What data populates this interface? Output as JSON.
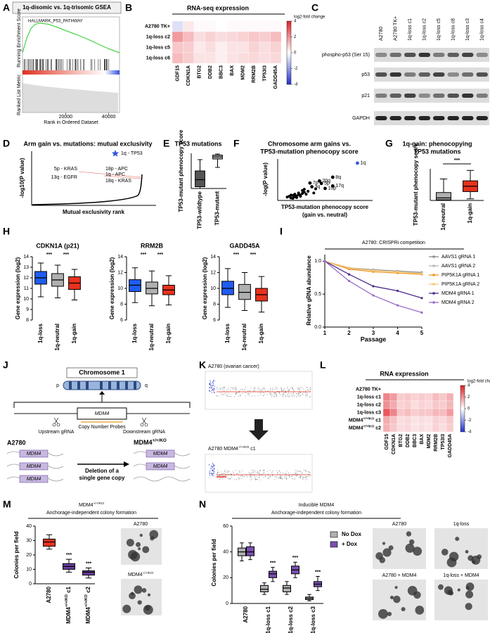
{
  "panels": {
    "A": {
      "letter": "A",
      "title": "1q-disomic vs. 1q-trisomic GSEA",
      "gene_set": "HALLMARK_P53_PATHWAY",
      "y_label": "Running Enrichment Score",
      "y2_label": "Ranked List Metric",
      "x_label": "Rank in Ordered Dataset",
      "xlim": [
        0,
        45000
      ],
      "xticks": [
        20000,
        40000
      ],
      "ylim": [
        -0.1,
        0.7
      ],
      "es": {
        "x": [
          0,
          2000,
          4000,
          6000,
          8000,
          12000,
          16000,
          20000,
          25000,
          30000,
          35000,
          40000,
          45000
        ],
        "values": [
          0,
          0.3,
          0.5,
          0.58,
          0.6,
          0.58,
          0.52,
          0.45,
          0.37,
          0.28,
          0.18,
          0.08,
          0
        ],
        "color": "#22cc22"
      }
    },
    "B": {
      "letter": "B",
      "title": "RNA-seq expression",
      "rows": [
        "A2780 TK+",
        "1q-loss c2",
        "1q-loss c5",
        "1q-loss c6"
      ],
      "columns": [
        "GDF15",
        "CDKN1A",
        "BTG2",
        "DDB2",
        "BBC3",
        "BAX",
        "MDM2",
        "RRM2B",
        "TP53I3",
        "GADD45A"
      ],
      "matrix": [
        [
          -0.6,
          0.4,
          0.1,
          0.1,
          0,
          0.1,
          0.1,
          0.1,
          0.1,
          0.1
        ],
        [
          1.8,
          1.2,
          0.6,
          0.8,
          0.6,
          0.7,
          0.8,
          1.0,
          0.9,
          1.2
        ],
        [
          1.0,
          0.9,
          0.4,
          0.6,
          0.3,
          0.5,
          0.5,
          0.8,
          0.6,
          0.8
        ],
        [
          1.2,
          0.9,
          0.5,
          0.5,
          0.3,
          0.5,
          0.6,
          0.7,
          0.6,
          0.7
        ]
      ],
      "clim": [
        -4,
        4
      ],
      "cticks": [
        4,
        2,
        0,
        -2,
        -4
      ],
      "colorbar_label": "log2-fold change",
      "cmap": [
        "#2233cc",
        "#ffffff",
        "#e0202a"
      ]
    },
    "C": {
      "letter": "C",
      "columns": [
        "A2780",
        "A2780 TK+",
        "1q-loss c1",
        "1q-loss c2",
        "1q-loss c5",
        "1q-loss c8",
        "1q-loss c3",
        "1q-loss c4"
      ],
      "rows": [
        "phospho-p53 (Ser 15)",
        "p53",
        "p21",
        "GAPDH"
      ]
    },
    "D": {
      "letter": "D",
      "title": "Arm gain vs. mutations: mutual exclusivity",
      "y_label": "-log10(P value)",
      "x_label": "Mutual exclusivity rank",
      "annotations": [
        {
          "text": "1q - TP53",
          "color": "#3355dd"
        },
        {
          "text": "5p - KRAS",
          "color": "#e03020"
        },
        {
          "text": "13q - EGFR",
          "color": "#e03020"
        },
        {
          "text": "18p - APC",
          "color": "#e03020"
        },
        {
          "text": "1q - APC",
          "color": "#e03020"
        },
        {
          "text": "18q - KRAS",
          "color": "#e03020"
        }
      ]
    },
    "E": {
      "letter": "E",
      "title": "TP53 mutations",
      "y_label": "TP53-mutant phenocopy score",
      "categories": [
        "TP53-wildtype",
        "TP53-mutant"
      ],
      "ylim": [
        0,
        1
      ],
      "boxes": [
        [
          0,
          0.05,
          0.25,
          0.5,
          0.82
        ],
        [
          0.6,
          0.84,
          0.9,
          0.95,
          0.98
        ]
      ],
      "colors": [
        "#555555",
        "#b0b0b0"
      ]
    },
    "F": {
      "letter": "F",
      "title": [
        "Chromosome arm gains vs.",
        "TP53-mutation phenocopy score"
      ],
      "y_label": "-log(P value)",
      "x_label": [
        "TP53-mutation phenocopy score",
        "(gain vs. neutral)"
      ],
      "xlim": [
        0,
        0.5
      ],
      "ylim": [
        0,
        1
      ],
      "points": {
        "x": [
          0.05,
          0.06,
          0.07,
          0.08,
          0.09,
          0.1,
          0.11,
          0.12,
          0.13,
          0.08,
          0.1,
          0.12,
          0.14,
          0.15,
          0.16,
          0.09,
          0.11,
          0.13,
          0.2,
          0.19,
          0.07,
          0.14
        ],
        "y": [
          0.08,
          0.1,
          0.06,
          0.12,
          0.09,
          0.11,
          0.14,
          0.13,
          0.17,
          0.05,
          0.07,
          0.1,
          0.2,
          0.15,
          0.22,
          0.15,
          0.18,
          0.24,
          0.28,
          0.18,
          0.13,
          0.27
        ]
      },
      "highlights": [
        {
          "label": "1q",
          "x": 0.42,
          "y": 0.9,
          "color": "#3355dd"
        },
        {
          "label": "8q",
          "x": 0.29,
          "y": 0.56,
          "color": "#e03020"
        },
        {
          "label": "20q",
          "x": 0.22,
          "y": 0.47,
          "color": "#e03020"
        },
        {
          "label": "5p",
          "x": 0.23,
          "y": 0.41,
          "color": "#e03020"
        },
        {
          "label": "7p",
          "x": 0.17,
          "y": 0.42,
          "color": "#e03020"
        },
        {
          "label": "3q",
          "x": 0.18,
          "y": 0.33,
          "color": "#e03020"
        },
        {
          "label": "17q",
          "x": 0.29,
          "y": 0.35,
          "color": "#e03020"
        },
        {
          "label": "10p",
          "x": 0.25,
          "y": 0.29,
          "color": "#e03020"
        }
      ]
    },
    "G": {
      "letter": "G",
      "title": [
        "1q-gain: phenocopying",
        "TP53 mutations"
      ],
      "y_label": "TP53-mutant phenocopy score",
      "categories": [
        "1q-neutral",
        "1q-gain"
      ],
      "ylim": [
        0,
        1
      ],
      "boxes": [
        [
          0,
          0.02,
          0.08,
          0.25,
          0.68
        ],
        [
          0.05,
          0.28,
          0.45,
          0.62,
          0.95
        ]
      ],
      "colors": [
        "#b0b0b0",
        "#e8321e"
      ],
      "significance": "***"
    },
    "H": {
      "letter": "H",
      "y_label": "Gene expression (log2)",
      "categories": [
        "1q-loss",
        "1q-neutral",
        "1q-gain"
      ],
      "colors": [
        "#1f5cf0",
        "#b0b0b0",
        "#e8321e"
      ],
      "significance": "***",
      "plots": [
        {
          "title": "CDKN1A (p21)",
          "ylim": [
            8,
            14
          ],
          "yticks": [
            8,
            9,
            10,
            11,
            12,
            13,
            14
          ],
          "boxes": [
            [
              10.2,
              11.4,
              12,
              12.6,
              13.4
            ],
            [
              10.1,
              11.2,
              11.8,
              12.4,
              13.2
            ],
            [
              9.9,
              10.9,
              11.5,
              12.1,
              12.8
            ]
          ]
        },
        {
          "title": "RRM2B",
          "ylim": [
            6,
            14
          ],
          "yticks": [
            6,
            8,
            10,
            12,
            14
          ],
          "boxes": [
            [
              8.2,
              9.6,
              10.4,
              11.1,
              12.6
            ],
            [
              7.8,
              9.3,
              10.0,
              10.8,
              12.2
            ],
            [
              7.9,
              9.2,
              9.8,
              10.4,
              11.6
            ]
          ]
        },
        {
          "title": "GADD45A",
          "ylim": [
            6,
            14
          ],
          "yticks": [
            6,
            8,
            10,
            12,
            14
          ],
          "boxes": [
            [
              7.6,
              9.2,
              10.0,
              10.9,
              12.5
            ],
            [
              7.2,
              8.6,
              9.5,
              10.5,
              12.0
            ],
            [
              7.0,
              8.4,
              9.2,
              10.0,
              11.5
            ]
          ]
        }
      ]
    },
    "I": {
      "letter": "I",
      "type": "line",
      "title": "A2780: CRISPRi competition",
      "y_label": "Relative gRNA abundance",
      "x_label": "Passage",
      "x": [
        1,
        2,
        3,
        4,
        5
      ],
      "xlim": [
        1,
        5
      ],
      "xticks": [
        1,
        2,
        3,
        4,
        5
      ],
      "ylim": [
        0,
        1.1
      ],
      "yticks": [
        {
          "value": 0,
          "label": "0.0"
        },
        {
          "value": 0.5,
          "label": "0.5"
        },
        {
          "value": 1,
          "label": "1.0"
        }
      ],
      "series": [
        {
          "name": "AAVS1 gRNA 1",
          "color": "#8c8c8c",
          "values": [
            1,
            0.9,
            0.87,
            0.85,
            0.83
          ]
        },
        {
          "name": "AAVS1 gRNA 2",
          "color": "#b8b8b8",
          "values": [
            1,
            0.89,
            0.86,
            0.84,
            0.82
          ]
        },
        {
          "name": "PIP5K1A gRNA 1",
          "color": "#f0961e",
          "values": [
            1,
            0.88,
            0.84,
            0.82,
            0.8
          ]
        },
        {
          "name": "PIP5K1A gRNA 2",
          "color": "#f5c878",
          "values": [
            1,
            0.9,
            0.86,
            0.84,
            0.81
          ]
        },
        {
          "name": "MDM4 gRNA 1",
          "color": "#4b2a8c",
          "values": [
            1,
            0.8,
            0.62,
            0.55,
            0.44
          ]
        },
        {
          "name": "MDM4 gRNA 2",
          "color": "#9a6cc8",
          "values": [
            1,
            0.7,
            0.48,
            0.33,
            0.22
          ]
        }
      ]
    },
    "J": {
      "letter": "J",
      "chromosome": "Chromosome 1",
      "p": "p",
      "q": "q",
      "gene": "MDM4",
      "upstream": "Upstream gRNA",
      "downstream": "Downstream gRNA",
      "probes": "Copy Number Probes",
      "parent": "A2780",
      "process": [
        "Deletion of a",
        "single gene copy"
      ],
      "product": {
        "base": "MDM4",
        "sup": "+/+/KO"
      }
    },
    "K": {
      "letter": "K",
      "top_label": "A2780 (ovarian cancer)",
      "bottom_label": {
        "base": "A2780 MDM4",
        "sup": "+/+/KO",
        "suffix": " c1"
      }
    },
    "L": {
      "letter": "L",
      "title": "RNA expression",
      "rows": [
        "A2780 TK+",
        "1q-loss c1",
        "1q-loss c2",
        "1q-loss c3",
        {
          "base": "MDM4",
          "sup": "+/+/KO",
          "suffix": " c1"
        },
        {
          "base": "MDM4",
          "sup": "+/+/KO",
          "suffix": " c2"
        }
      ],
      "columns": [
        "GDF15",
        "CDKN1A",
        "BTG2",
        "DDB2",
        "BBC3",
        "BAX",
        "MDM2",
        "RRM2B",
        "TP53I3",
        "GADD45A"
      ],
      "matrix": [
        [
          0,
          0,
          0,
          0,
          0,
          0,
          0,
          0,
          0,
          0
        ],
        [
          2.2,
          1.8,
          0.9,
          1.0,
          0.8,
          0.9,
          0.8,
          1.2,
          1.0,
          1.4
        ],
        [
          2.0,
          1.5,
          0.8,
          0.9,
          0.6,
          0.8,
          0.7,
          1.0,
          0.9,
          1.3
        ],
        [
          3.0,
          2.2,
          1.0,
          1.2,
          0.9,
          1.0,
          1.0,
          1.3,
          1.2,
          1.8
        ],
        [
          1.5,
          1.1,
          0.6,
          0.7,
          0.5,
          0.6,
          0.5,
          0.8,
          0.7,
          1.0
        ],
        [
          1.4,
          1.0,
          0.6,
          0.7,
          0.5,
          0.6,
          0.5,
          0.8,
          0.6,
          0.9
        ]
      ],
      "clim": [
        -4,
        4
      ],
      "cticks": [
        4,
        2,
        0,
        -2,
        -4
      ],
      "colorbar_label": "log2-fold change",
      "cmap": [
        "#2233cc",
        "#ffffff",
        "#e0202a"
      ]
    },
    "M": {
      "letter": "M",
      "title": [
        {
          "base": "MDM4",
          "sup": "+/+/KO"
        },
        "Anchorage-independent colony formation"
      ],
      "y_label": "Colonies per field",
      "ylim": [
        0,
        40
      ],
      "yticks": [
        0,
        10,
        20,
        30,
        40
      ],
      "categories": [
        "A2780",
        {
          "base": "MDM4",
          "sup": "+/+/KO",
          "suffix": " c1"
        },
        {
          "base": "MDM4",
          "sup": "+/+/KO",
          "suffix": " c2"
        }
      ],
      "boxes": [
        [
          24,
          26,
          29,
          31,
          34
        ],
        [
          8,
          10,
          12,
          14,
          17
        ],
        [
          4,
          6,
          8,
          9,
          11
        ]
      ],
      "colors": [
        "#e8321e",
        "#6a3fa0",
        "#6a3fa0"
      ],
      "significance": "***",
      "image_labels": [
        "A2780",
        {
          "base": "MDM4",
          "sup": "+/+/KO"
        }
      ]
    },
    "N": {
      "letter": "N",
      "title": [
        "Inducible MDM4",
        "Anchorage-independent colony formation"
      ],
      "y_label": "Colonies per field",
      "ylim": [
        0,
        60
      ],
      "yticks": [
        0,
        20,
        40,
        60
      ],
      "categories": [
        "A2780",
        "1q-loss c1",
        "1q-loss c2",
        "1q-loss c3"
      ],
      "series": [
        {
          "name": "No Dox",
          "color": "#b0b0b0",
          "boxes": [
            [
              33,
              37,
              40,
              43,
              47
            ],
            [
              7,
              9,
              11,
              14,
              16
            ],
            [
              7,
              9,
              12,
              14,
              17
            ],
            [
              2,
              3,
              4,
              5,
              7
            ]
          ]
        },
        {
          "name": "+ Dox",
          "color": "#7a4fb0",
          "boxes": [
            [
              34,
              37,
              40,
              44,
              47
            ],
            [
              17,
              20,
              23,
              25,
              28
            ],
            [
              20,
              23,
              26,
              29,
              32
            ],
            [
              10,
              13,
              15,
              17,
              21
            ]
          ]
        }
      ],
      "significance": "***",
      "image_labels": [
        "A2780",
        "1q-loss",
        "A2780 + MDM4",
        "1q-loss + MDM4"
      ]
    }
  }
}
